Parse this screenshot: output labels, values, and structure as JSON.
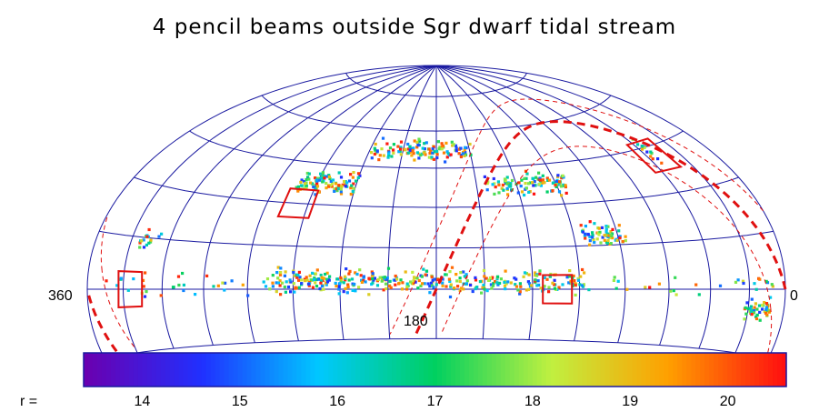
{
  "chart_data": {
    "type": "scatter",
    "projection": "hammer-aitoff (upper hemisphere)",
    "title": "4 pencil beams outside Sgr dwarf tidal stream",
    "x_tick_labels": {
      "left": "360",
      "center": "180",
      "right": "0"
    },
    "x_range": [
      360,
      0
    ],
    "lat_range": [
      -18,
      90
    ],
    "grid": true,
    "grid_color": "#1a1aa0",
    "colorbar": {
      "prefix": "r =",
      "ticks": [
        "14",
        "15",
        "16",
        "17",
        "18",
        "19",
        "20"
      ],
      "range": [
        13.4,
        20.6
      ],
      "colors": [
        "#6a00b0",
        "#2030ff",
        "#00c8ff",
        "#00d060",
        "#c0f040",
        "#ffa000",
        "#ff1010"
      ]
    },
    "pencil_beams": [
      {
        "lon": 334,
        "lat": 0
      },
      {
        "lon": 253,
        "lat": 30
      },
      {
        "lon": 123,
        "lat": 0
      },
      {
        "lon": 40,
        "lat": 42
      }
    ],
    "sgr_stream": {
      "color": "#e01010",
      "inner_offset_deg": 10
    },
    "stream_clumps": [
      {
        "lon_range": [
          8,
          352
        ],
        "lat": 1,
        "spread": 2.5,
        "n": 110
      },
      {
        "lon_range": [
          110,
          260
        ],
        "lat": 3,
        "spread": 3,
        "n": 330
      },
      {
        "lon_range": [
          25,
          9
        ],
        "lat": -6,
        "spread": 2,
        "n": 45
      },
      {
        "lon_range": [
          258,
          224
        ],
        "lat": 38,
        "spread": 3,
        "n": 110
      },
      {
        "lon_range": [
          224,
          156
        ],
        "lat": 52,
        "spread": 3,
        "n": 130
      },
      {
        "lon_range": [
          152,
          106
        ],
        "lat": 38,
        "spread": 3,
        "n": 110
      },
      {
        "lon_range": [
          108,
          86
        ],
        "lat": 18,
        "spread": 3,
        "n": 70
      },
      {
        "lon_range": [
          333,
          321
        ],
        "lat": 14,
        "spread": 2,
        "n": 18
      },
      {
        "lon_range": [
          43,
          39
        ],
        "lat": 44,
        "spread": 3,
        "n": 14
      }
    ]
  }
}
